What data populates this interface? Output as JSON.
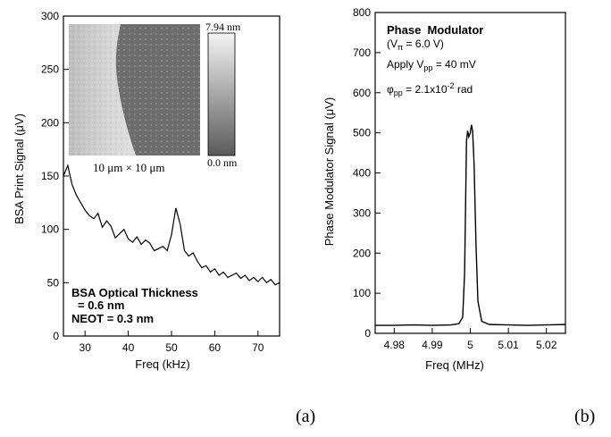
{
  "panel_labels": {
    "a": "(a)",
    "b": "(b)"
  },
  "chart_data": [
    {
      "panel": "a",
      "type": "line",
      "xlabel": "Freq (kHz)",
      "ylabel": "BSA Print Signal (μV)",
      "xlim": [
        25,
        75
      ],
      "ylim": [
        0,
        300
      ],
      "xticks": [
        30,
        40,
        50,
        60,
        70
      ],
      "yticks": [
        0,
        50,
        100,
        150,
        200,
        250,
        300
      ],
      "x": [
        25,
        26,
        27,
        28,
        29,
        30,
        31,
        32,
        33,
        34,
        35,
        36,
        37,
        38,
        39,
        40,
        41,
        42,
        43,
        44,
        45,
        46,
        47,
        48,
        49,
        50,
        51,
        52,
        53,
        54,
        55,
        56,
        57,
        58,
        59,
        60,
        61,
        62,
        63,
        64,
        65,
        66,
        67,
        68,
        69,
        70,
        71,
        72,
        73,
        74,
        75
      ],
      "y": [
        150,
        160,
        142,
        132,
        125,
        118,
        113,
        110,
        115,
        102,
        108,
        103,
        92,
        96,
        100,
        91,
        88,
        93,
        86,
        90,
        87,
        80,
        82,
        84,
        80,
        95,
        120,
        105,
        80,
        75,
        78,
        70,
        64,
        66,
        60,
        63,
        57,
        60,
        55,
        57,
        59,
        54,
        57,
        52,
        55,
        51,
        55,
        50,
        53,
        48,
        50
      ],
      "annotations": [
        "BSA Optical Thickness",
        "= 0.6 nm",
        "NEOT = 0.3 nm"
      ],
      "inset": {
        "scale_max": "7.94 nm",
        "scale_min": "0.0 nm",
        "caption": "10 μm × 10 μm"
      }
    },
    {
      "panel": "b",
      "type": "line",
      "xlabel": "Freq (MHz)",
      "ylabel": "Phase Modulator Signal (μV)",
      "xlim": [
        4.975,
        5.025
      ],
      "ylim": [
        0,
        800
      ],
      "xticks": [
        4.98,
        4.99,
        5,
        5.01,
        5.02
      ],
      "xtick_labels": [
        "4.98",
        "4.99",
        "5",
        "5.01",
        "5.02"
      ],
      "yticks": [
        0,
        100,
        200,
        300,
        400,
        500,
        600,
        700,
        800
      ],
      "x": [
        4.975,
        4.98,
        4.985,
        4.99,
        4.995,
        4.997,
        4.998,
        4.9985,
        4.999,
        4.9993,
        4.9996,
        5.0,
        5.0003,
        5.0006,
        5.001,
        5.0015,
        5.002,
        5.003,
        5.005,
        5.01,
        5.015,
        5.02,
        5.025
      ],
      "y": [
        20,
        20,
        21,
        20,
        21,
        24,
        40,
        150,
        480,
        505,
        490,
        500,
        520,
        505,
        420,
        220,
        80,
        30,
        22,
        21,
        20,
        21,
        22
      ],
      "annotations": [
        "Phase  Modulator",
        "(Vπ = 6.0 V)",
        "Apply Vpp = 40 mV",
        "φpp = 2.1x10⁻² rad"
      ]
    }
  ]
}
